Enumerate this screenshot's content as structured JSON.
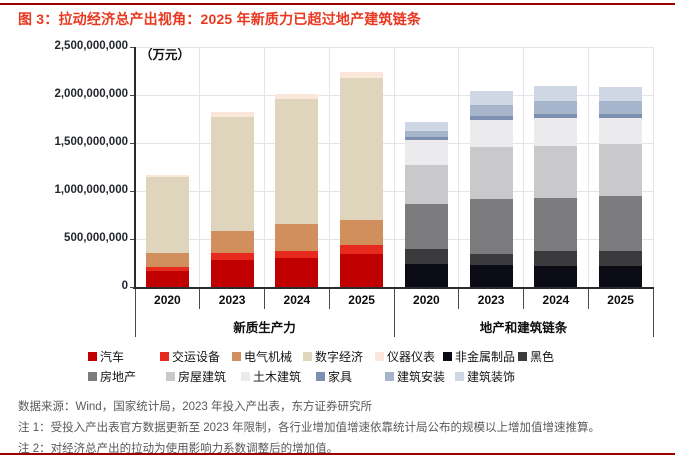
{
  "title": {
    "text": "图 3：拉动经济总产出视角：2025 年新质力已超过地产建筑链条"
  },
  "colors": {
    "accent_rule": "#990000",
    "title_red": "#e8381f",
    "grid": "#e4e4ea",
    "axis": "#2b2b2b",
    "footer_gray": "#595959"
  },
  "chart_data": {
    "type": "bar",
    "stacked": true,
    "unit_label": "（万元）",
    "ylabel": "",
    "xlabel": "",
    "ylim": [
      0,
      2500000000
    ],
    "grid": true,
    "y_ticks": [
      {
        "value": 0,
        "label": "0"
      },
      {
        "value": 500000000,
        "label": "500,000,000"
      },
      {
        "value": 1000000000,
        "label": "1,000,000,000"
      },
      {
        "value": 1500000000,
        "label": "1,500,000,000"
      },
      {
        "value": 2000000000,
        "label": "2,000,000,000"
      },
      {
        "value": 2500000000,
        "label": "2,500,000,000"
      }
    ],
    "years": [
      "2020",
      "2023",
      "2024",
      "2025"
    ],
    "groups": [
      {
        "label": "新质生产力"
      },
      {
        "label": "地产和建筑链条"
      }
    ],
    "series": [
      {
        "name": "汽车",
        "color": "#c00000",
        "group": 0,
        "values": [
          165000000,
          285000000,
          300000000,
          340000000
        ]
      },
      {
        "name": "交运设备",
        "color": "#e8291d",
        "group": 0,
        "values": [
          45000000,
          68000000,
          80000000,
          100000000
        ]
      },
      {
        "name": "电气机械",
        "color": "#d08f5c",
        "group": 0,
        "values": [
          140000000,
          235000000,
          275000000,
          260000000
        ]
      },
      {
        "name": "数字经济",
        "color": "#ded5bc",
        "group": 0,
        "values": [
          795000000,
          1180000000,
          1300000000,
          1480000000
        ]
      },
      {
        "name": "仪器仪表",
        "color": "#fbe7d9",
        "group": 0,
        "values": [
          25000000,
          55000000,
          56000000,
          62000000
        ]
      },
      {
        "name": "非金属制品",
        "color": "#0b0b15",
        "group": 1,
        "values": [
          235000000,
          225000000,
          215000000,
          215000000
        ]
      },
      {
        "name": "黑色",
        "color": "#3b3b3d",
        "group": 1,
        "values": [
          160000000,
          120000000,
          158000000,
          165000000
        ]
      },
      {
        "name": "房地产",
        "color": "#7b7b7d",
        "group": 1,
        "values": [
          465000000,
          570000000,
          550000000,
          570000000
        ]
      },
      {
        "name": "房屋建筑",
        "color": "#c9c9cb",
        "group": 1,
        "values": [
          415000000,
          545000000,
          545000000,
          535000000
        ]
      },
      {
        "name": "土木建筑",
        "color": "#ebebed",
        "group": 1,
        "values": [
          260000000,
          283000000,
          293000000,
          275000000
        ]
      },
      {
        "name": "家具",
        "color": "#7d90b2",
        "group": 1,
        "values": [
          30000000,
          41000000,
          46000000,
          38000000
        ]
      },
      {
        "name": "建筑安装",
        "color": "#a6b4cc",
        "group": 1,
        "values": [
          62000000,
          114000000,
          127000000,
          138000000
        ]
      },
      {
        "name": "建筑装饰",
        "color": "#cfd6e4",
        "group": 1,
        "values": [
          93000000,
          145000000,
          158000000,
          145000000
        ]
      }
    ],
    "legend_rows": [
      7,
      6
    ],
    "legend_position": "bottom"
  },
  "footer": {
    "source": "数据来源：Wind，国家统计局，2023 年投入产出表，东方证券研究所",
    "note1": "注 1：受投入产出表官方数据更新至 2023 年限制，各行业增加值增速依靠统计局公布的规模以上增加值增速推算。",
    "note2": "注 2：对经济总产出的拉动为使用影响力系数调整后的增加值。"
  }
}
